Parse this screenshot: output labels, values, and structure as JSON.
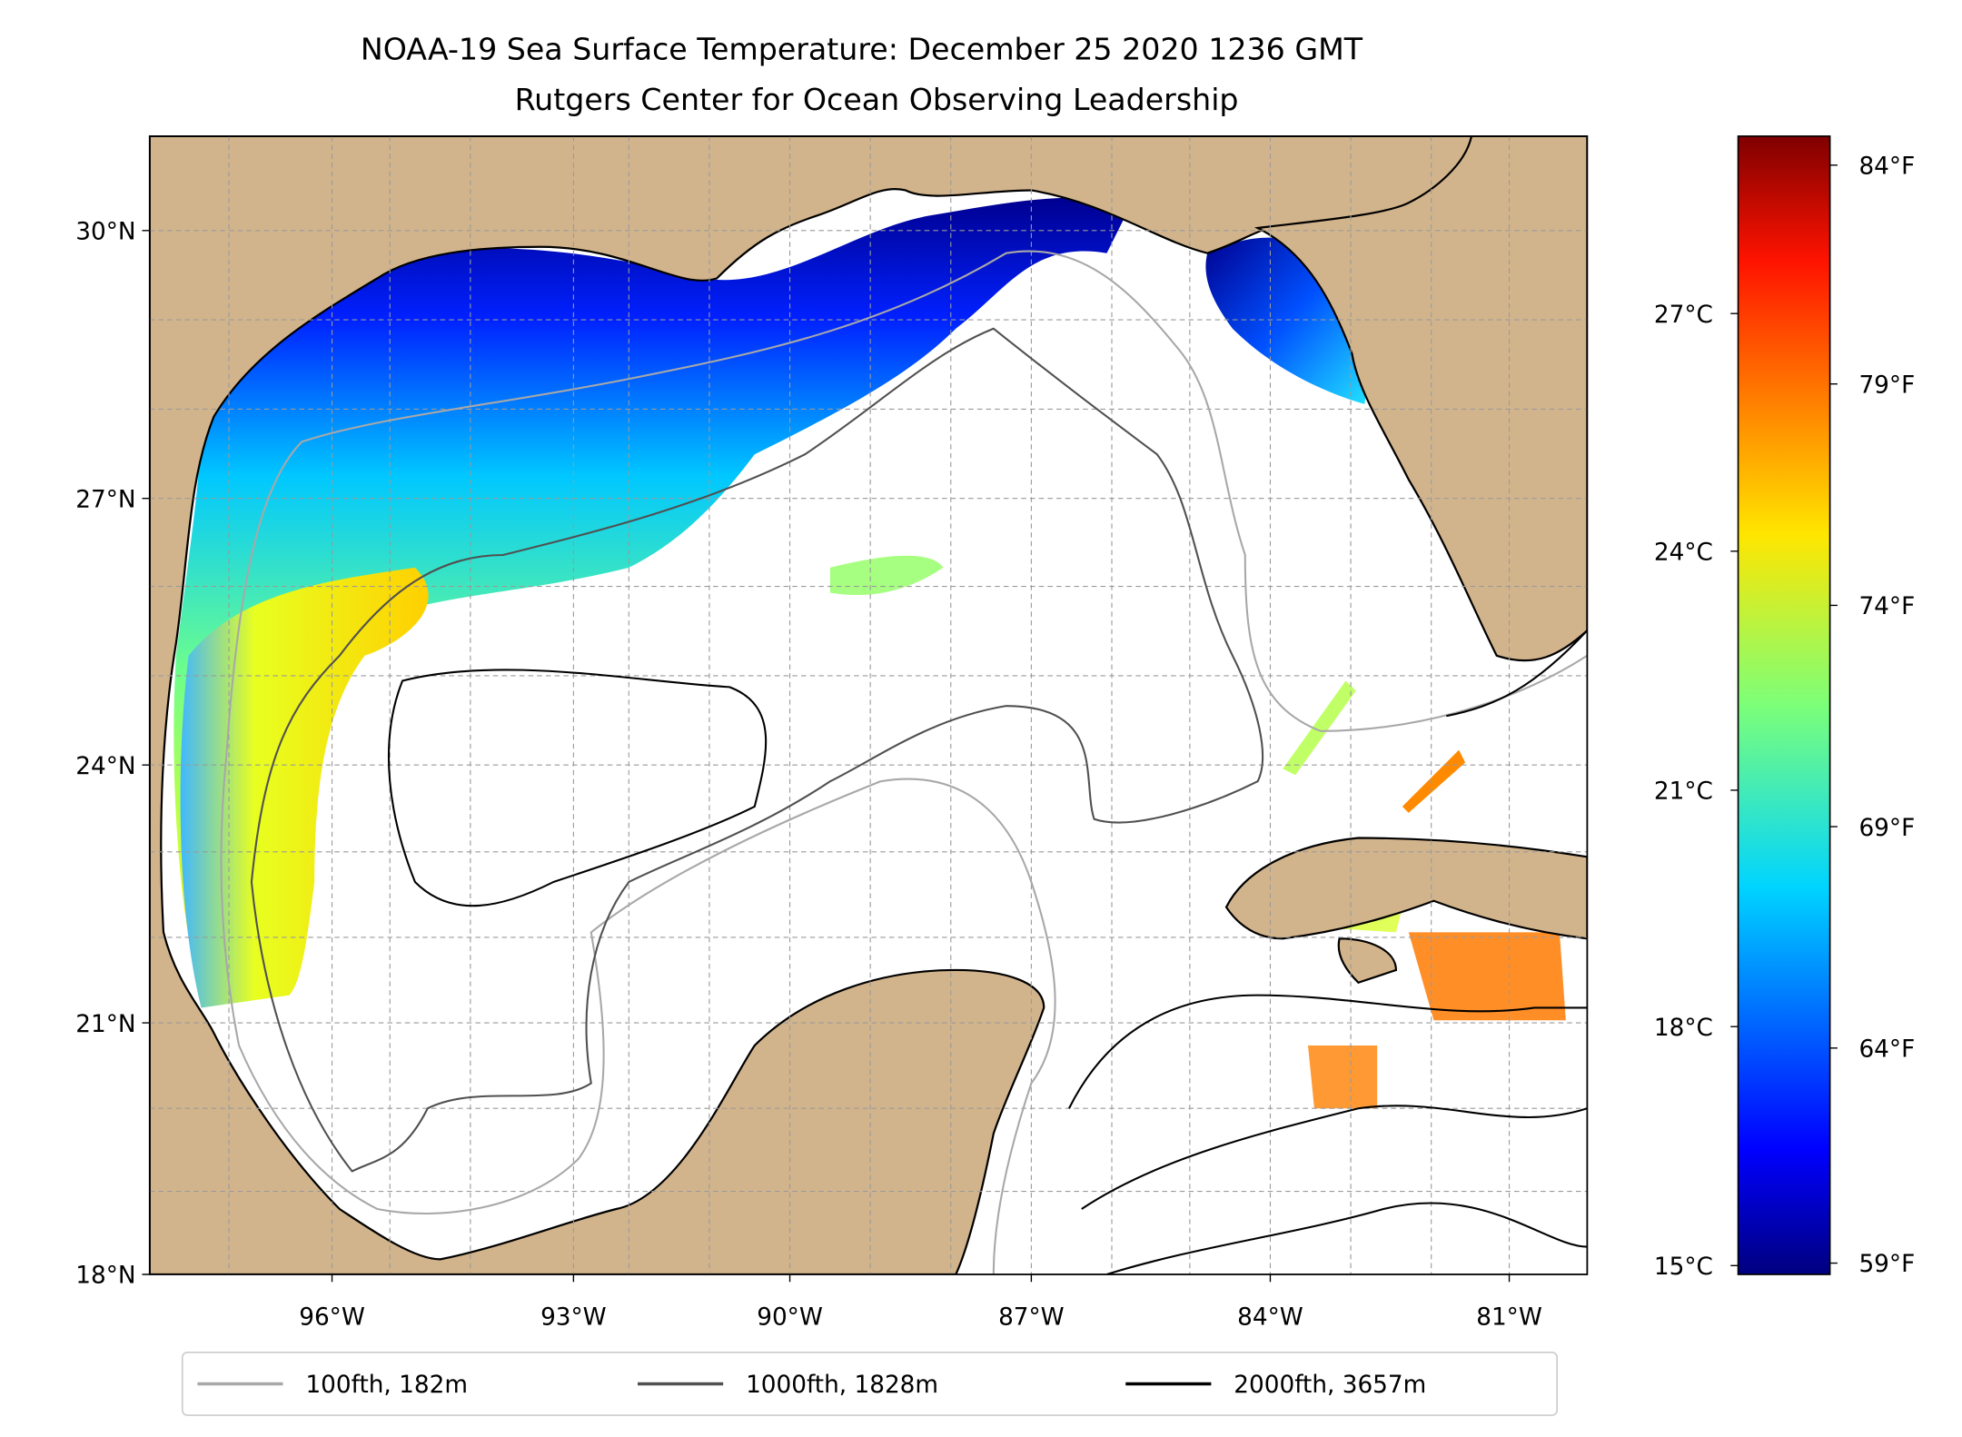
{
  "title": {
    "line1": "NOAA-19 Sea Surface Temperature: December 25 2020 1236 GMT",
    "line2": "Rutgers Center for Ocean Observing Leadership"
  },
  "map": {
    "lon_ticks": [
      "96°W",
      "93°W",
      "90°W",
      "87°W",
      "84°W",
      "81°W"
    ],
    "lat_ticks": [
      "30°N",
      "27°N",
      "24°N",
      "21°N",
      "18°N"
    ],
    "extent": {
      "lon_min": -98.3,
      "lon_max": -80.0,
      "lat_min": 18.0,
      "lat_max": 31.0
    },
    "land_color": "#d2b48c"
  },
  "colorbar": {
    "celsius_ticks": [
      "27°C",
      "24°C",
      "21°C",
      "18°C",
      "15°C"
    ],
    "fahrenheit_ticks": [
      "84°F",
      "79°F",
      "74°F",
      "69°F",
      "64°F",
      "59°F"
    ],
    "range_c": [
      14.9,
      29.2
    ],
    "colormap": "jet"
  },
  "legend": {
    "items": [
      {
        "label": "100fth, 182m",
        "color": "#a8a8a8"
      },
      {
        "label": "1000fth, 1828m",
        "color": "#505050"
      },
      {
        "label": "2000fth, 3657m",
        "color": "#000000"
      }
    ]
  }
}
